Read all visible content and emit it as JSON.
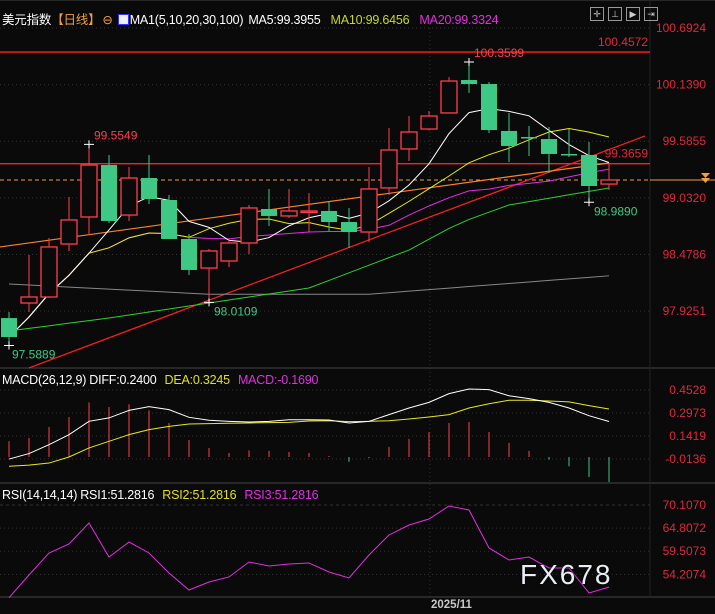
{
  "header": {
    "symbol": "美元指数",
    "period": "【日线】",
    "ma_label": "MA1(5,10,20,30,100)",
    "ma5": "MA5:99.3955",
    "ma10": "MA10:99.6456",
    "ma20": "MA20:99.3324"
  },
  "toolbar_icons": [
    "crosshair-icon",
    "range-icon",
    "play-icon",
    "exit-icon"
  ],
  "macd_header": {
    "name": "MACD(26,12,9)",
    "diff": "DIFF:0.2400",
    "dea": "DEA:0.3245",
    "macd": "MACD:-0.1690"
  },
  "rsi_header": {
    "name": "RSI(14,14,14)",
    "rsi1": "RSI1:51.2816",
    "rsi2": "RSI2:51.2816",
    "rsi3": "RSI3:51.2816"
  },
  "watermark": "FX678",
  "colors": {
    "up": "#ff3d4f",
    "down": "#3ec884",
    "ma5": "#ffffff",
    "ma10": "#e8e820",
    "ma20": "#e030e0",
    "ma30": "#30d030",
    "ma100": "#888888",
    "axis": "#e0283c"
  },
  "chart_data": {
    "type": "candlestick",
    "x_tick_labels": [
      {
        "index": 21,
        "label": "2025/11"
      }
    ],
    "price_ticks": [
      "100.6924",
      "100.1390",
      "99.5855",
      "99.0320",
      "98.4786",
      "97.9251"
    ],
    "ohlc": [
      [
        97.857,
        97.916,
        97.589,
        97.672
      ],
      [
        98.004,
        98.473,
        97.916,
        98.063
      ],
      [
        98.063,
        98.64,
        98.053,
        98.552
      ],
      [
        98.581,
        99.04,
        98.513,
        98.816
      ],
      [
        98.845,
        99.5549,
        98.669,
        99.353
      ],
      [
        99.353,
        99.451,
        98.786,
        98.806
      ],
      [
        98.864,
        99.334,
        98.806,
        99.226
      ],
      [
        99.226,
        99.451,
        98.972,
        99.021
      ],
      [
        99.011,
        99.06,
        98.63,
        98.63
      ],
      [
        98.63,
        98.679,
        98.278,
        98.327
      ],
      [
        98.346,
        98.532,
        98.0109,
        98.513
      ],
      [
        98.415,
        98.63,
        98.356,
        98.591
      ],
      [
        98.591,
        98.962,
        98.483,
        98.933
      ],
      [
        98.923,
        99.119,
        98.757,
        98.855
      ],
      [
        98.855,
        99.119,
        98.835,
        98.904
      ],
      [
        98.894,
        99.08,
        98.698,
        98.904
      ],
      [
        98.904,
        98.992,
        98.708,
        98.796
      ],
      [
        98.796,
        98.933,
        98.542,
        98.698
      ],
      [
        98.698,
        99.334,
        98.601,
        99.119
      ],
      [
        99.129,
        99.715,
        99.06,
        99.5
      ],
      [
        99.51,
        99.832,
        99.392,
        99.676
      ],
      [
        99.705,
        99.881,
        99.69,
        99.832
      ],
      [
        99.862,
        100.213,
        99.862,
        100.174
      ],
      [
        100.184,
        100.3599,
        100.057,
        100.145
      ],
      [
        100.145,
        100.164,
        99.666,
        99.695
      ],
      [
        99.686,
        99.862,
        99.383,
        99.539
      ],
      [
        99.627,
        99.735,
        99.441,
        99.617
      ],
      [
        99.607,
        99.725,
        99.275,
        99.461
      ],
      [
        99.461,
        99.705,
        99.432,
        99.455
      ],
      [
        99.451,
        99.578,
        98.989,
        99.148
      ],
      [
        99.167,
        99.373,
        99.109,
        99.207
      ]
    ],
    "ma30": [
      97.73,
      97.756,
      97.781,
      97.807,
      97.832,
      97.858,
      97.887,
      97.916,
      97.946,
      97.975,
      98.004,
      98.033,
      98.063,
      98.092,
      98.122,
      98.151,
      98.225,
      98.299,
      98.374,
      98.448,
      98.522,
      98.628,
      98.733,
      98.821,
      98.892,
      98.962,
      98.995,
      99.028,
      99.062,
      99.095,
      99.128
    ],
    "ma100": [
      98.19,
      98.18,
      98.17,
      98.16,
      98.15,
      98.14,
      98.13,
      98.12,
      98.11,
      98.1,
      98.09,
      98.09,
      98.09,
      98.09,
      98.09,
      98.09,
      98.09,
      98.09,
      98.09,
      98.105,
      98.12,
      98.135,
      98.15,
      98.165,
      98.18,
      98.195,
      98.21,
      98.225,
      98.24,
      98.255,
      98.27
    ],
    "annotations": [
      {
        "index": 4,
        "price": 99.5549,
        "label": "99.5549",
        "color": "up"
      },
      {
        "index": 0,
        "price": 97.5889,
        "label": "97.5889",
        "color": "down"
      },
      {
        "index": 10,
        "price": 98.0109,
        "label": "98.0109",
        "color": "down"
      },
      {
        "index": 23,
        "price": 100.3599,
        "label": "100.3599",
        "color": "up"
      },
      {
        "index": 29,
        "price": 98.989,
        "label": "98.9890",
        "color": "down"
      }
    ],
    "horizontal_lines": [
      {
        "price": 100.4572,
        "label": "100.4572"
      },
      {
        "price": 99.3659,
        "label": "99.3659"
      }
    ],
    "last_price_line": 99.207,
    "trendlines": [
      {
        "color": "#ff2020",
        "from": [
          1,
          97.369
        ],
        "to": [
          31.8,
          99.637
        ]
      },
      {
        "color": "#ff8030",
        "from": [
          -0.45,
          98.552
        ],
        "to": [
          30,
          99.373
        ]
      }
    ],
    "macd": {
      "ticks": [
        "0.4528",
        "0.2973",
        "0.1419",
        "-0.0136"
      ],
      "diff": [
        -0.014,
        0.023,
        0.083,
        0.151,
        0.241,
        0.264,
        0.315,
        0.34,
        0.32,
        0.268,
        0.248,
        0.241,
        0.236,
        0.241,
        0.252,
        0.252,
        0.25,
        0.23,
        0.241,
        0.286,
        0.331,
        0.369,
        0.428,
        0.459,
        0.455,
        0.414,
        0.394,
        0.369,
        0.331,
        0.279,
        0.24
      ],
      "dea": [
        -0.063,
        -0.055,
        -0.041,
        0.0,
        0.061,
        0.106,
        0.151,
        0.185,
        0.207,
        0.223,
        0.225,
        0.228,
        0.23,
        0.232,
        0.234,
        0.243,
        0.245,
        0.239,
        0.241,
        0.245,
        0.257,
        0.27,
        0.286,
        0.331,
        0.36,
        0.383,
        0.383,
        0.378,
        0.372,
        0.347,
        0.3245
      ],
      "hist": [
        0.106,
        0.128,
        0.203,
        0.27,
        0.369,
        0.338,
        0.356,
        0.315,
        0.23,
        0.115,
        0.061,
        0.027,
        0.045,
        0.041,
        0.034,
        0.027,
        0.007,
        -0.032,
        -0.007,
        0.068,
        0.122,
        0.167,
        0.23,
        0.236,
        0.169,
        0.095,
        0.041,
        -0.018,
        -0.063,
        -0.135,
        -0.169
      ]
    },
    "rsi": {
      "ticks": [
        "70.1070",
        "64.8072",
        "59.5073",
        "54.2074"
      ],
      "values": [
        48.85,
        54.05,
        59.1,
        61.16,
        65.98,
        58.18,
        61.62,
        59.1,
        54.51,
        50.61,
        52.45,
        53.6,
        57.04,
        56.12,
        56.58,
        56.81,
        54.74,
        53.37,
        58.64,
        63.23,
        65.52,
        66.9,
        69.88,
        68.96,
        60.25,
        57.49,
        58.18,
        55.66,
        55.66,
        49.93,
        51.28
      ]
    }
  }
}
